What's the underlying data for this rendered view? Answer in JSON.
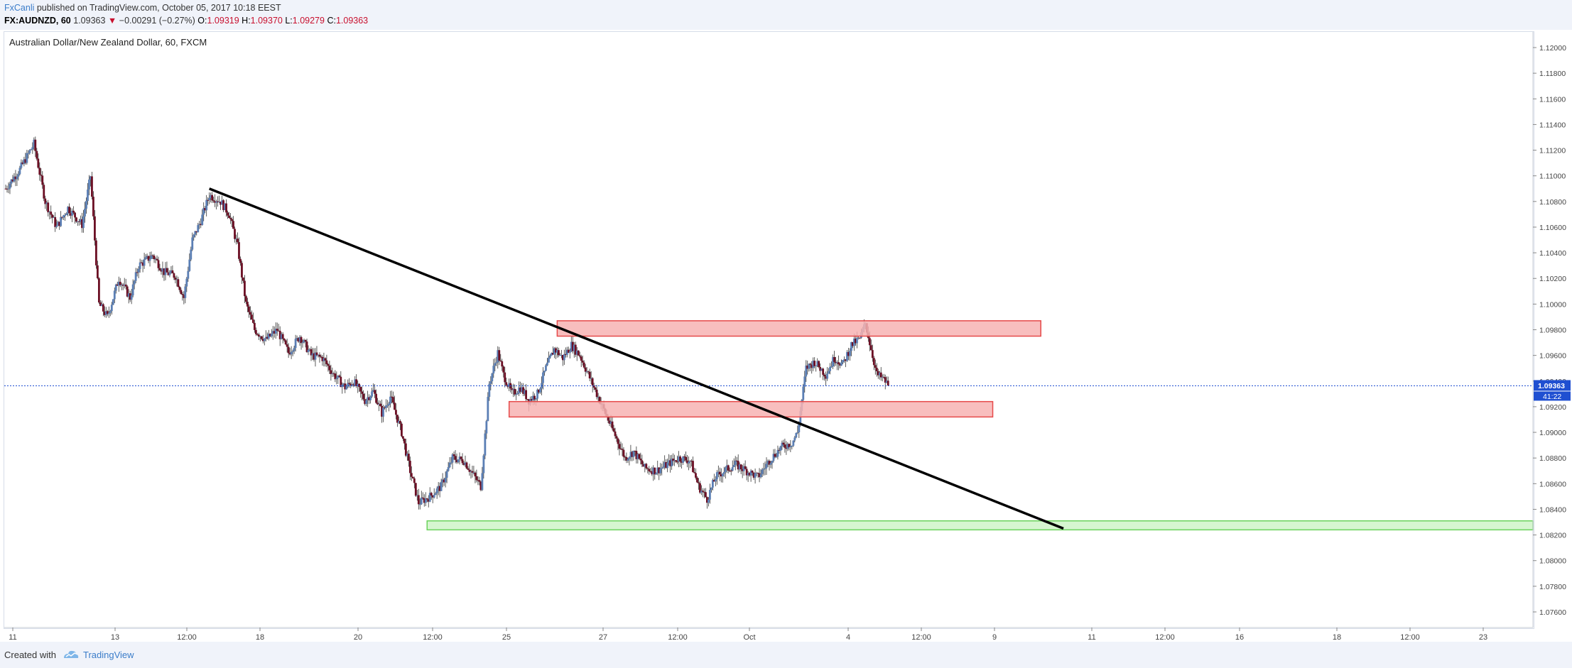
{
  "header": {
    "author": "FxCanli",
    "published_text": "published on TradingView.com, October 05, 2017 10:18 EEST",
    "symbol_interval": "FX:AUDNZD, 60",
    "last": "1.09363",
    "change": "−0.00291 (−0.27%)",
    "o_label": "O:",
    "o": "1.09319",
    "h_label": "H:",
    "h": "1.09370",
    "l_label": "L:",
    "l": "1.09279",
    "c_label": "C:",
    "c": "1.09363"
  },
  "footer": {
    "created_with": "Created with",
    "brand": "TradingView"
  },
  "chart_data": {
    "type": "candlestick",
    "title": "Australian Dollar/New Zealand Dollar, 60, FXCM",
    "x_ticks": [
      "11",
      "13",
      "12:00",
      "18",
      "20",
      "12:00",
      "25",
      "27",
      "12:00",
      "Oct",
      "4",
      "12:00",
      "9",
      "11",
      "12:00",
      "16",
      "18",
      "12:00",
      "23"
    ],
    "y_ticks": [
      "1.12000",
      "1.11800",
      "1.11600",
      "1.11400",
      "1.11200",
      "1.11000",
      "1.10800",
      "1.10600",
      "1.10400",
      "1.10200",
      "1.10000",
      "1.09800",
      "1.09600",
      "1.09400",
      "1.09200",
      "1.09000",
      "1.08800",
      "1.08600",
      "1.08400",
      "1.08200",
      "1.08000",
      "1.07800",
      "1.07600"
    ],
    "ylim": [
      1.0748,
      1.1206
    ],
    "current_price_label": "1.09363",
    "countdown_label": "41:22",
    "current_price": 1.09363,
    "price_path": [
      [
        0,
        1.109
      ],
      [
        5,
        1.1105
      ],
      [
        10,
        1.1125
      ],
      [
        14,
        1.108
      ],
      [
        18,
        1.106
      ],
      [
        22,
        1.1075
      ],
      [
        27,
        1.1062
      ],
      [
        30,
        1.11
      ],
      [
        33,
        1.1
      ],
      [
        36,
        1.099
      ],
      [
        40,
        1.102
      ],
      [
        44,
        1.1005
      ],
      [
        47,
        1.103
      ],
      [
        52,
        1.1038
      ],
      [
        56,
        1.1025
      ],
      [
        60,
        1.1022
      ],
      [
        63,
        1.1005
      ],
      [
        66,
        1.105
      ],
      [
        69,
        1.1065
      ],
      [
        72,
        1.1085
      ],
      [
        76,
        1.108
      ],
      [
        79,
        1.107
      ],
      [
        82,
        1.1045
      ],
      [
        85,
        1.1
      ],
      [
        88,
        1.098
      ],
      [
        92,
        1.0972
      ],
      [
        96,
        1.098
      ],
      [
        100,
        1.0962
      ],
      [
        104,
        1.0975
      ],
      [
        108,
        1.096
      ],
      [
        112,
        1.0958
      ],
      [
        116,
        1.0945
      ],
      [
        120,
        1.0935
      ],
      [
        123,
        1.094
      ],
      [
        127,
        1.0925
      ],
      [
        130,
        1.0932
      ],
      [
        133,
        1.0915
      ],
      [
        136,
        1.0928
      ],
      [
        140,
        1.09
      ],
      [
        143,
        1.087
      ],
      [
        146,
        1.0845
      ],
      [
        150,
        1.085
      ],
      [
        154,
        1.0858
      ],
      [
        158,
        1.088
      ],
      [
        162,
        1.0878
      ],
      [
        165,
        1.0868
      ],
      [
        168,
        1.0858
      ],
      [
        171,
        1.0938
      ],
      [
        174,
        1.0962
      ],
      [
        176,
        1.0945
      ],
      [
        179,
        1.093
      ],
      [
        182,
        1.0935
      ],
      [
        185,
        1.0925
      ],
      [
        188,
        1.093
      ],
      [
        191,
        1.095
      ],
      [
        194,
        1.0965
      ],
      [
        197,
        1.0958
      ],
      [
        200,
        1.0968
      ],
      [
        203,
        1.096
      ],
      [
        206,
        1.0945
      ],
      [
        210,
        1.0925
      ],
      [
        213,
        1.091
      ],
      [
        216,
        1.0895
      ],
      [
        219,
        1.088
      ],
      [
        222,
        1.0885
      ],
      [
        226,
        1.0872
      ],
      [
        230,
        1.087
      ],
      [
        234,
        1.0875
      ],
      [
        238,
        1.088
      ],
      [
        242,
        1.0878
      ],
      [
        245,
        1.0858
      ],
      [
        248,
        1.0848
      ],
      [
        251,
        1.0865
      ],
      [
        254,
        1.087
      ],
      [
        258,
        1.0875
      ],
      [
        262,
        1.087
      ],
      [
        266,
        1.0865
      ],
      [
        270,
        1.0878
      ],
      [
        274,
        1.0888
      ],
      [
        278,
        1.0892
      ],
      [
        280,
        1.09
      ],
      [
        283,
        1.095
      ],
      [
        286,
        1.0955
      ],
      [
        290,
        1.0945
      ],
      [
        293,
        1.0958
      ],
      [
        296,
        1.0953
      ],
      [
        299,
        1.0968
      ],
      [
        302,
        1.0973
      ],
      [
        304,
        1.0985
      ],
      [
        306,
        1.0965
      ],
      [
        308,
        1.0945
      ],
      [
        310,
        1.0942
      ],
      [
        312,
        1.0937
      ]
    ],
    "trendline": {
      "from": [
        72,
        1.109
      ],
      "to": [
        374,
        1.0825
      ]
    },
    "zones": [
      {
        "name": "resistance-upper",
        "x": [
          195,
          366
        ],
        "y": [
          1.0975,
          1.0987
        ],
        "color": "#f7b3b3"
      },
      {
        "name": "resistance-lower",
        "x": [
          178,
          349
        ],
        "y": [
          1.0912,
          1.0924
        ],
        "color": "#f7b3b3"
      },
      {
        "name": "support",
        "x": [
          149,
          540
        ],
        "y": [
          1.0824,
          1.0831
        ],
        "color": "#cff4c8"
      }
    ],
    "x_span": 540
  }
}
